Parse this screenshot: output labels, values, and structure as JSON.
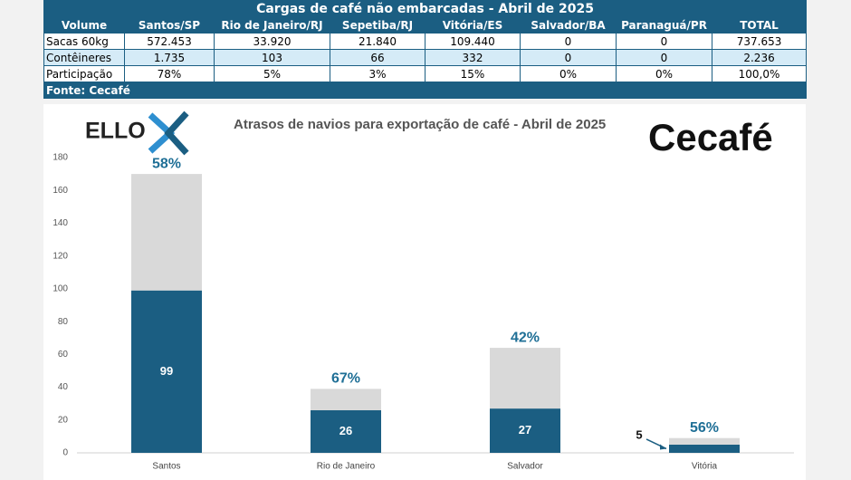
{
  "table": {
    "title": "Cargas de café não embarcadas - Abril de 2025",
    "header": [
      "Volume",
      "Santos/SP",
      "Rio de Janeiro/RJ",
      "Sepetiba/RJ",
      "Vitória/ES",
      "Salvador/BA",
      "Paranaguá/PR",
      "TOTAL"
    ],
    "rows": [
      [
        "Sacas 60kg",
        "572.453",
        "33.920",
        "21.840",
        "109.440",
        "0",
        "0",
        "737.653"
      ],
      [
        "Contêineres",
        "1.735",
        "103",
        "66",
        "332",
        "0",
        "0",
        "2.236"
      ],
      [
        "Participação",
        "78%",
        "5%",
        "3%",
        "15%",
        "0%",
        "0%",
        "100,0%"
      ]
    ],
    "footer": "Fonte: Cecafé"
  },
  "logos": {
    "left": "ELLO",
    "right": "Cecafé"
  },
  "chart_data": {
    "type": "stacked_bar",
    "title": "Atrasos de navios para exportação de café - Abril de 2025",
    "categories": [
      "Santos",
      "Rio de Janeiro",
      "Salvador",
      "Vitória"
    ],
    "series": [
      {
        "color": "#1b5e82",
        "values": [
          99,
          26,
          27,
          5
        ]
      },
      {
        "color": "#d9d9d9",
        "values": [
          71,
          13,
          37,
          4
        ]
      }
    ],
    "shares": {
      "color": "#1f6f96",
      "values": [
        58,
        67,
        42,
        56
      ],
      "value_labels": [
        "58%",
        "67%",
        "42%",
        "56%"
      ]
    },
    "ylim": [
      0,
      180
    ],
    "yticks": [
      0,
      20,
      40,
      60,
      80,
      100,
      120,
      140,
      160,
      180
    ],
    "grid": false
  }
}
